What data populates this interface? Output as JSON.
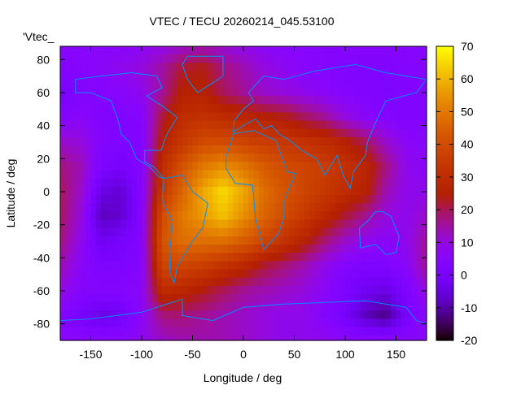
{
  "chart_data": {
    "type": "heatmap",
    "title": "VTEC / TECU 20260214_045.53100",
    "xlabel": "Longitude / deg",
    "ylabel": "Latitude / deg",
    "key_label": "'Vtec_",
    "xlim": [
      -180,
      180
    ],
    "ylim": [
      -90,
      88
    ],
    "xticks": [
      -150,
      -100,
      -50,
      0,
      50,
      100,
      150
    ],
    "yticks": [
      -80,
      -60,
      -40,
      -20,
      0,
      20,
      40,
      60,
      80
    ],
    "colorbar": {
      "range": [
        -20,
        70
      ],
      "ticks": [
        -20,
        -10,
        0,
        10,
        20,
        30,
        40,
        50,
        60,
        70
      ]
    },
    "grid": false,
    "lons": [
      -180,
      -160,
      -140,
      -120,
      -100,
      -80,
      -60,
      -40,
      -20,
      0,
      20,
      40,
      60,
      80,
      100,
      120,
      140,
      160,
      180
    ],
    "lats": [
      90,
      75,
      60,
      45,
      30,
      15,
      0,
      -15,
      -30,
      -45,
      -60,
      -75,
      -90
    ],
    "values": [
      [
        5,
        5,
        5,
        5,
        6,
        8,
        10,
        12,
        10,
        8,
        6,
        5,
        5,
        5,
        5,
        5,
        5,
        5,
        5
      ],
      [
        4,
        5,
        6,
        8,
        10,
        15,
        22,
        24,
        18,
        14,
        10,
        7,
        5,
        4,
        3,
        3,
        3,
        4,
        4
      ],
      [
        0,
        3,
        4,
        5,
        8,
        16,
        26,
        26,
        20,
        16,
        12,
        10,
        8,
        6,
        4,
        3,
        2,
        3,
        3
      ],
      [
        4,
        6,
        3,
        3,
        4,
        22,
        30,
        32,
        30,
        28,
        26,
        24,
        20,
        16,
        10,
        6,
        4,
        3,
        3
      ],
      [
        12,
        10,
        4,
        2,
        3,
        26,
        34,
        40,
        40,
        38,
        36,
        34,
        32,
        30,
        26,
        20,
        12,
        6,
        5
      ],
      [
        18,
        14,
        2,
        0,
        4,
        30,
        42,
        50,
        54,
        50,
        44,
        40,
        38,
        36,
        32,
        28,
        18,
        8,
        6
      ],
      [
        20,
        12,
        -4,
        -6,
        4,
        34,
        46,
        58,
        66,
        58,
        48,
        42,
        38,
        34,
        30,
        26,
        14,
        8,
        8
      ],
      [
        20,
        10,
        -8,
        -6,
        4,
        40,
        50,
        56,
        62,
        54,
        46,
        40,
        34,
        28,
        22,
        16,
        10,
        8,
        12
      ],
      [
        18,
        8,
        -2,
        0,
        4,
        42,
        48,
        48,
        48,
        44,
        38,
        32,
        26,
        18,
        12,
        8,
        6,
        8,
        16
      ],
      [
        14,
        6,
        2,
        2,
        4,
        38,
        38,
        36,
        32,
        28,
        22,
        18,
        14,
        8,
        4,
        2,
        2,
        6,
        16
      ],
      [
        10,
        4,
        4,
        4,
        6,
        30,
        28,
        24,
        20,
        16,
        14,
        12,
        10,
        6,
        2,
        -2,
        -4,
        2,
        10
      ],
      [
        4,
        0,
        -4,
        -2,
        6,
        18,
        18,
        16,
        14,
        12,
        10,
        8,
        8,
        4,
        0,
        -8,
        -12,
        0,
        6
      ],
      [
        6,
        6,
        6,
        6,
        8,
        12,
        14,
        14,
        14,
        12,
        10,
        8,
        8,
        8,
        6,
        6,
        6,
        6,
        6
      ]
    ],
    "coastline_color": "#0090ff"
  }
}
